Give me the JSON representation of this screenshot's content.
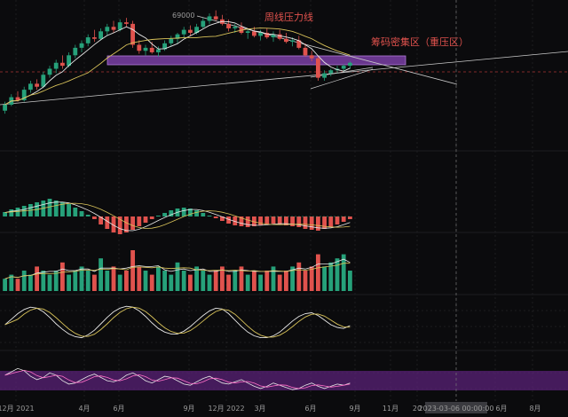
{
  "chart_data": {
    "type": "candlestick",
    "title": "",
    "colors": {
      "background": "#0b0b0d",
      "up": "#26a17a",
      "down": "#e0524d",
      "ma_fast": "#e8e8e8",
      "ma_slow": "#d9c35a",
      "zone": "#7a3fa6",
      "annotation": "#e0524d",
      "grid": "#2a2a2e"
    },
    "price_labels": {
      "high": "69000"
    },
    "annotations": {
      "weekly_resistance": "周线压力线",
      "chip_zone": "筹码密集区（重压区）"
    },
    "x_axis": {
      "ticks": [
        "12月 2021",
        "4月",
        "6月",
        "9月",
        "12月 2022",
        "3月",
        "6月",
        "9月",
        "11月",
        "20",
        "2023-03-06 00:00:00",
        "6月",
        "8月"
      ],
      "crosshair_label": "2023-03-06 00:00:00"
    },
    "price_series": [
      {
        "o": 3.2,
        "h": 3.8,
        "l": 3.0,
        "c": 3.6
      },
      {
        "o": 3.6,
        "h": 4.3,
        "l": 3.5,
        "c": 4.1
      },
      {
        "o": 4.1,
        "h": 4.5,
        "l": 3.8,
        "c": 3.9
      },
      {
        "o": 3.9,
        "h": 4.8,
        "l": 3.8,
        "c": 4.6
      },
      {
        "o": 4.6,
        "h": 5.2,
        "l": 4.4,
        "c": 5.0
      },
      {
        "o": 5.0,
        "h": 5.3,
        "l": 4.6,
        "c": 4.8
      },
      {
        "o": 4.8,
        "h": 5.8,
        "l": 4.7,
        "c": 5.6
      },
      {
        "o": 5.6,
        "h": 6.2,
        "l": 5.4,
        "c": 6.0
      },
      {
        "o": 6.0,
        "h": 6.6,
        "l": 5.7,
        "c": 6.4
      },
      {
        "o": 6.4,
        "h": 6.9,
        "l": 6.0,
        "c": 6.2
      },
      {
        "o": 6.2,
        "h": 7.1,
        "l": 6.1,
        "c": 6.9
      },
      {
        "o": 6.9,
        "h": 7.6,
        "l": 6.7,
        "c": 7.4
      },
      {
        "o": 7.4,
        "h": 7.9,
        "l": 7.1,
        "c": 7.7
      },
      {
        "o": 7.7,
        "h": 8.3,
        "l": 7.5,
        "c": 8.1
      },
      {
        "o": 8.1,
        "h": 8.6,
        "l": 7.8,
        "c": 8.0
      },
      {
        "o": 8.0,
        "h": 8.7,
        "l": 7.9,
        "c": 8.5
      },
      {
        "o": 8.5,
        "h": 9.0,
        "l": 8.2,
        "c": 8.8
      },
      {
        "o": 8.8,
        "h": 9.2,
        "l": 8.4,
        "c": 8.6
      },
      {
        "o": 8.6,
        "h": 9.3,
        "l": 8.5,
        "c": 9.1
      },
      {
        "o": 9.1,
        "h": 9.4,
        "l": 8.8,
        "c": 9.0
      },
      {
        "o": 9.0,
        "h": 9.2,
        "l": 7.4,
        "c": 7.6
      },
      {
        "o": 7.6,
        "h": 7.9,
        "l": 7.0,
        "c": 7.2
      },
      {
        "o": 7.2,
        "h": 7.6,
        "l": 6.9,
        "c": 7.4
      },
      {
        "o": 7.4,
        "h": 7.8,
        "l": 7.0,
        "c": 7.1
      },
      {
        "o": 7.1,
        "h": 7.5,
        "l": 6.8,
        "c": 7.3
      },
      {
        "o": 7.3,
        "h": 7.9,
        "l": 7.2,
        "c": 7.7
      },
      {
        "o": 7.7,
        "h": 8.2,
        "l": 7.5,
        "c": 8.0
      },
      {
        "o": 8.0,
        "h": 8.4,
        "l": 7.7,
        "c": 8.3
      },
      {
        "o": 8.3,
        "h": 8.8,
        "l": 8.1,
        "c": 8.6
      },
      {
        "o": 8.6,
        "h": 8.9,
        "l": 8.2,
        "c": 8.4
      },
      {
        "o": 8.4,
        "h": 9.0,
        "l": 8.3,
        "c": 8.8
      },
      {
        "o": 8.8,
        "h": 9.4,
        "l": 8.7,
        "c": 9.2
      },
      {
        "o": 9.2,
        "h": 9.7,
        "l": 9.0,
        "c": 9.5
      },
      {
        "o": 9.5,
        "h": 9.9,
        "l": 9.2,
        "c": 9.3
      },
      {
        "o": 9.3,
        "h": 9.6,
        "l": 8.9,
        "c": 9.0
      },
      {
        "o": 9.0,
        "h": 9.3,
        "l": 8.5,
        "c": 8.7
      },
      {
        "o": 8.7,
        "h": 9.0,
        "l": 8.4,
        "c": 8.8
      },
      {
        "o": 8.8,
        "h": 9.1,
        "l": 8.3,
        "c": 8.4
      },
      {
        "o": 8.4,
        "h": 8.7,
        "l": 8.0,
        "c": 8.5
      },
      {
        "o": 8.5,
        "h": 8.8,
        "l": 8.1,
        "c": 8.2
      },
      {
        "o": 8.2,
        "h": 8.6,
        "l": 7.9,
        "c": 8.4
      },
      {
        "o": 8.4,
        "h": 8.7,
        "l": 8.0,
        "c": 8.1
      },
      {
        "o": 8.1,
        "h": 8.5,
        "l": 7.8,
        "c": 8.3
      },
      {
        "o": 8.3,
        "h": 8.6,
        "l": 7.9,
        "c": 8.0
      },
      {
        "o": 8.0,
        "h": 8.4,
        "l": 7.7,
        "c": 7.8
      },
      {
        "o": 7.8,
        "h": 8.1,
        "l": 7.5,
        "c": 7.9
      },
      {
        "o": 7.9,
        "h": 8.2,
        "l": 7.3,
        "c": 7.4
      },
      {
        "o": 7.4,
        "h": 7.7,
        "l": 6.8,
        "c": 6.9
      },
      {
        "o": 6.9,
        "h": 7.2,
        "l": 6.5,
        "c": 6.7
      },
      {
        "o": 6.7,
        "h": 6.9,
        "l": 5.2,
        "c": 5.4
      },
      {
        "o": 5.4,
        "h": 5.9,
        "l": 5.2,
        "c": 5.7
      },
      {
        "o": 5.7,
        "h": 6.0,
        "l": 5.5,
        "c": 5.9
      },
      {
        "o": 5.9,
        "h": 6.2,
        "l": 5.7,
        "c": 6.0
      },
      {
        "o": 6.0,
        "h": 6.3,
        "l": 5.8,
        "c": 6.2
      },
      {
        "o": 6.2,
        "h": 6.5,
        "l": 6.0,
        "c": 6.4
      }
    ],
    "volume": [
      3,
      4,
      3,
      5,
      4,
      6,
      5,
      4,
      5,
      7,
      4,
      5,
      6,
      5,
      4,
      8,
      5,
      6,
      4,
      5,
      10,
      6,
      5,
      4,
      6,
      5,
      4,
      7,
      5,
      4,
      6,
      5,
      4,
      5,
      6,
      4,
      5,
      6,
      4,
      5,
      4,
      5,
      6,
      4,
      5,
      6,
      7,
      5,
      6,
      9,
      6,
      7,
      8,
      9,
      5
    ],
    "macd": [
      0.5,
      0.8,
      1.0,
      1.2,
      1.4,
      1.6,
      1.8,
      2.0,
      1.8,
      1.6,
      1.4,
      1.0,
      0.6,
      0.2,
      -0.3,
      -0.9,
      -1.4,
      -1.8,
      -2.0,
      -1.8,
      -1.5,
      -1.1,
      -0.7,
      -0.3,
      0.1,
      0.4,
      0.7,
      0.9,
      1.0,
      0.9,
      0.7,
      0.4,
      0.1,
      -0.2,
      -0.5,
      -0.8,
      -1.0,
      -1.1,
      -1.2,
      -1.1,
      -1.0,
      -0.9,
      -0.8,
      -0.9,
      -1.0,
      -1.1,
      -1.2,
      -1.4,
      -1.5,
      -1.6,
      -1.4,
      -1.2,
      -0.9,
      -0.6,
      -0.3
    ],
    "kdj": [
      50,
      62,
      74,
      83,
      88,
      86,
      78,
      66,
      52,
      40,
      30,
      24,
      22,
      28,
      38,
      52,
      66,
      78,
      86,
      90,
      88,
      80,
      68,
      54,
      42,
      34,
      30,
      30,
      36,
      46,
      58,
      70,
      80,
      86,
      84,
      74,
      60,
      46,
      34,
      26,
      22,
      22,
      26,
      34,
      46,
      58,
      68,
      74,
      76,
      70,
      60,
      50,
      44,
      42,
      48
    ],
    "rsi": [
      60,
      66,
      72,
      68,
      58,
      52,
      56,
      64,
      60,
      50,
      44,
      46,
      52,
      58,
      62,
      56,
      50,
      48,
      52,
      60,
      64,
      58,
      50,
      46,
      52,
      58,
      56,
      50,
      44,
      42,
      48,
      54,
      58,
      52,
      46,
      44,
      48,
      52,
      46,
      40,
      36,
      40,
      46,
      42,
      38,
      34,
      36,
      42,
      46,
      40,
      36,
      40,
      44,
      42,
      46
    ]
  }
}
